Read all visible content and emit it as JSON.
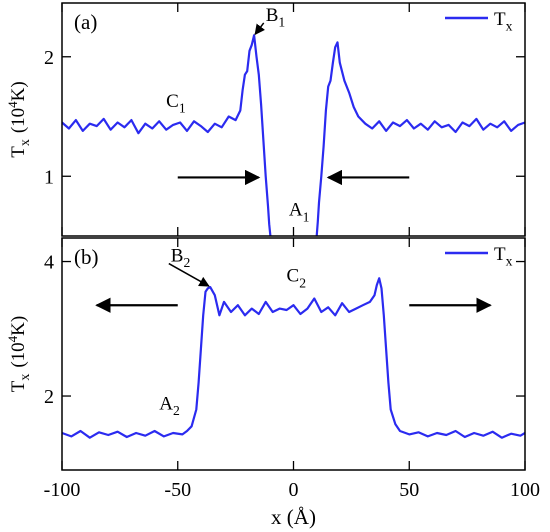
{
  "chart_data": [
    {
      "type": "line",
      "panel_label": "(a)",
      "legend": {
        "entry": "T",
        "entry_sub": "x",
        "color": "#2b2bf0",
        "placement": "top-right"
      },
      "ylabel": {
        "main": "T",
        "sub": "x",
        "unit_pre": "(10",
        "unit_sup": "4",
        "unit_post": "K)"
      },
      "xlim": [
        -100,
        100
      ],
      "ylim": [
        0.5,
        2.45
      ],
      "yticks": [
        1,
        2
      ],
      "ytick_labels": [
        "1",
        "2"
      ],
      "grid": false,
      "series": [
        {
          "name": "Tx",
          "color": "#2b2bf0",
          "x": [
            -100,
            -97,
            -94,
            -91,
            -88,
            -85,
            -82,
            -79,
            -76,
            -73,
            -70,
            -67,
            -64,
            -61,
            -58,
            -55,
            -52,
            -49,
            -46,
            -43,
            -40,
            -37,
            -34,
            -31,
            -28,
            -25,
            -23,
            -22,
            -21,
            -20,
            -19,
            -18,
            -17,
            -16,
            -15,
            -14,
            -13,
            -12,
            -11,
            -10.5,
            -10,
            -9.5,
            9.5,
            10,
            10.5,
            11,
            12,
            13,
            14,
            15,
            16,
            17,
            18,
            19,
            20,
            22,
            24,
            26,
            28,
            31,
            34,
            37,
            40,
            43,
            46,
            49,
            52,
            55,
            58,
            61,
            64,
            67,
            70,
            73,
            76,
            79,
            82,
            85,
            88,
            91,
            94,
            97,
            100
          ],
          "y": [
            1.45,
            1.4,
            1.47,
            1.38,
            1.44,
            1.42,
            1.48,
            1.39,
            1.45,
            1.41,
            1.47,
            1.36,
            1.44,
            1.4,
            1.46,
            1.39,
            1.43,
            1.45,
            1.38,
            1.46,
            1.42,
            1.37,
            1.44,
            1.41,
            1.5,
            1.47,
            1.55,
            1.72,
            1.85,
            1.88,
            2.05,
            2.1,
            2.18,
            2.0,
            1.85,
            1.6,
            1.3,
            1.0,
            0.75,
            0.6,
            0.5,
            0.45,
            0.45,
            0.5,
            0.62,
            0.78,
            1.0,
            1.25,
            1.55,
            1.75,
            1.8,
            1.95,
            2.08,
            2.12,
            1.95,
            1.8,
            1.7,
            1.58,
            1.5,
            1.44,
            1.4,
            1.46,
            1.38,
            1.45,
            1.42,
            1.47,
            1.4,
            1.44,
            1.39,
            1.46,
            1.41,
            1.43,
            1.37,
            1.45,
            1.42,
            1.48,
            1.39,
            1.44,
            1.41,
            1.46,
            1.38,
            1.43,
            1.45
          ]
        }
      ],
      "annotations": [
        {
          "text": "B",
          "sub": "1",
          "x": -12,
          "y": 2.3,
          "arrow_to": [
            -17,
            2.18
          ]
        },
        {
          "text": "C",
          "sub": "1",
          "x": -55,
          "y": 1.58
        },
        {
          "text": "A",
          "sub": "1",
          "x": -2,
          "y": 0.67
        }
      ],
      "arrows": [
        {
          "from": [
            -50,
            0.99
          ],
          "to": [
            -15,
            0.99
          ]
        },
        {
          "from": [
            50,
            0.99
          ],
          "to": [
            15,
            0.99
          ]
        }
      ]
    },
    {
      "type": "line",
      "panel_label": "(b)",
      "legend": {
        "entry": "T",
        "entry_sub": "x",
        "color": "#2b2bf0",
        "placement": "top-right"
      },
      "xlabel": {
        "text": "x (Å)"
      },
      "ylabel": {
        "main": "T",
        "sub": "x",
        "unit_pre": "(10",
        "unit_sup": "4",
        "unit_post": "K)"
      },
      "xlim": [
        -100,
        100
      ],
      "ylim": [
        0.9,
        4.35
      ],
      "xticks": [
        -100,
        -50,
        0,
        50,
        100
      ],
      "xtick_labels": [
        "-100",
        "-50",
        "0",
        "50",
        "100"
      ],
      "yticks": [
        2,
        4
      ],
      "ytick_labels": [
        "2",
        "4"
      ],
      "grid": false,
      "series": [
        {
          "name": "Tx",
          "color": "#2b2bf0",
          "x": [
            -100,
            -96,
            -92,
            -88,
            -84,
            -80,
            -76,
            -72,
            -68,
            -64,
            -60,
            -56,
            -52,
            -48,
            -46,
            -44,
            -42,
            -41,
            -40,
            -39,
            -38,
            -37,
            -36,
            -34,
            -32,
            -30,
            -27,
            -24,
            -21,
            -18,
            -15,
            -12,
            -9,
            -6,
            -3,
            0,
            3,
            6,
            9,
            12,
            15,
            18,
            21,
            24,
            27,
            30,
            33,
            35,
            36,
            37,
            38,
            39,
            40,
            41,
            42,
            44,
            46,
            50,
            54,
            58,
            62,
            66,
            70,
            74,
            78,
            82,
            86,
            90,
            94,
            98,
            100
          ],
          "y": [
            1.45,
            1.4,
            1.48,
            1.38,
            1.46,
            1.42,
            1.47,
            1.39,
            1.45,
            1.41,
            1.48,
            1.4,
            1.45,
            1.43,
            1.48,
            1.55,
            1.8,
            2.2,
            2.7,
            3.2,
            3.55,
            3.6,
            3.62,
            3.5,
            3.2,
            3.4,
            3.25,
            3.35,
            3.2,
            3.3,
            3.22,
            3.4,
            3.25,
            3.3,
            3.28,
            3.35,
            3.22,
            3.3,
            3.45,
            3.25,
            3.32,
            3.2,
            3.38,
            3.25,
            3.3,
            3.35,
            3.4,
            3.5,
            3.65,
            3.75,
            3.6,
            3.2,
            2.7,
            2.2,
            1.8,
            1.58,
            1.48,
            1.43,
            1.46,
            1.4,
            1.45,
            1.42,
            1.48,
            1.39,
            1.45,
            1.41,
            1.47,
            1.38,
            1.44,
            1.41,
            1.45
          ]
        }
      ],
      "annotations": [
        {
          "text": "B",
          "sub": "2",
          "x": -53,
          "y": 4.0,
          "arrow_to": [
            -37,
            3.62
          ]
        },
        {
          "text": "C",
          "sub": "2",
          "x": -3,
          "y": 3.7
        },
        {
          "text": "A",
          "sub": "2",
          "x": -58,
          "y": 1.8
        }
      ],
      "arrows": [
        {
          "from": [
            -50,
            3.35
          ],
          "to": [
            -85,
            3.35
          ]
        },
        {
          "from": [
            50,
            3.35
          ],
          "to": [
            85,
            3.35
          ]
        }
      ]
    }
  ]
}
